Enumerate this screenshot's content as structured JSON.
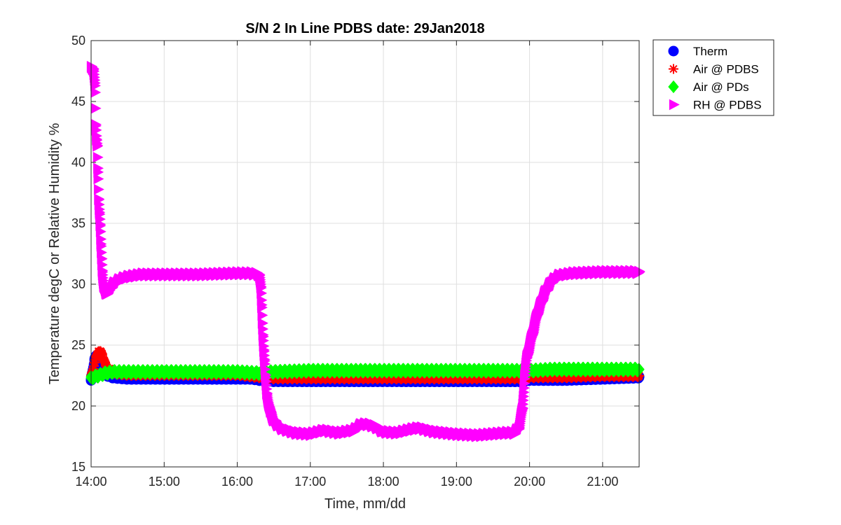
{
  "chart_data": {
    "type": "scatter",
    "title": "S/N 2 In Line PDBS date: 29Jan2018",
    "xlabel": "Time, mm/dd",
    "ylabel": "Temperature degC or Relative Humidity %",
    "xlim": [
      14.0,
      21.5
    ],
    "ylim": [
      15,
      50
    ],
    "xticks": [
      14,
      15,
      16,
      17,
      18,
      19,
      20,
      21
    ],
    "xtick_labels": [
      "14:00",
      "15:00",
      "16:00",
      "17:00",
      "18:00",
      "19:00",
      "20:00",
      "21:00"
    ],
    "yticks": [
      15,
      20,
      25,
      30,
      35,
      40,
      45,
      50
    ],
    "ytick_labels": [
      "15",
      "20",
      "25",
      "30",
      "35",
      "40",
      "45",
      "50"
    ],
    "grid": true,
    "legend_position": "outside-top-right",
    "series": [
      {
        "name": "Therm",
        "marker": "circle",
        "color": "#0000ff",
        "points": [
          [
            14.0,
            22.1
          ],
          [
            14.05,
            23.9
          ],
          [
            14.1,
            24.2
          ],
          [
            14.15,
            23.2
          ],
          [
            14.2,
            22.6
          ],
          [
            14.3,
            22.4
          ],
          [
            14.5,
            22.3
          ],
          [
            15.0,
            22.3
          ],
          [
            15.5,
            22.3
          ],
          [
            16.0,
            22.3
          ],
          [
            16.2,
            22.3
          ],
          [
            16.3,
            22.2
          ],
          [
            16.5,
            22.1
          ],
          [
            17.0,
            22.1
          ],
          [
            18.0,
            22.1
          ],
          [
            19.0,
            22.1
          ],
          [
            19.9,
            22.1
          ],
          [
            20.0,
            22.2
          ],
          [
            20.5,
            22.2
          ],
          [
            21.0,
            22.3
          ],
          [
            21.5,
            22.4
          ]
        ]
      },
      {
        "name": "Air @ PDBS",
        "marker": "asterisk",
        "color": "#ff0000",
        "points": [
          [
            14.0,
            22.4
          ],
          [
            14.05,
            23.6
          ],
          [
            14.1,
            24.5
          ],
          [
            14.15,
            24.3
          ],
          [
            14.2,
            23.3
          ],
          [
            14.3,
            22.7
          ],
          [
            14.5,
            22.6
          ],
          [
            15.0,
            22.6
          ],
          [
            15.5,
            22.6
          ],
          [
            16.0,
            22.6
          ],
          [
            16.3,
            22.4
          ],
          [
            16.5,
            22.3
          ],
          [
            17.0,
            22.3
          ],
          [
            18.0,
            22.3
          ],
          [
            19.0,
            22.3
          ],
          [
            19.9,
            22.3
          ],
          [
            20.0,
            22.4
          ],
          [
            20.5,
            22.4
          ],
          [
            21.0,
            22.5
          ],
          [
            21.5,
            22.5
          ]
        ]
      },
      {
        "name": "Air @ PDs",
        "marker": "diamond",
        "color": "#00ff00",
        "points": [
          [
            14.0,
            22.3
          ],
          [
            14.1,
            22.5
          ],
          [
            14.2,
            22.7
          ],
          [
            14.3,
            22.8
          ],
          [
            14.5,
            22.8
          ],
          [
            15.0,
            22.8
          ],
          [
            15.5,
            22.8
          ],
          [
            16.0,
            22.8
          ],
          [
            16.3,
            22.7
          ],
          [
            16.5,
            22.8
          ],
          [
            17.0,
            22.9
          ],
          [
            17.5,
            22.9
          ],
          [
            18.0,
            22.9
          ],
          [
            18.5,
            22.9
          ],
          [
            19.0,
            22.9
          ],
          [
            19.5,
            22.9
          ],
          [
            20.0,
            22.9
          ],
          [
            20.3,
            23.0
          ],
          [
            20.5,
            23.0
          ],
          [
            21.0,
            23.0
          ],
          [
            21.5,
            23.0
          ]
        ]
      },
      {
        "name": "RH @ PDBS",
        "marker": "triangle-right",
        "color": "#ff00ff",
        "points": [
          [
            14.0,
            47.8
          ],
          [
            14.03,
            47.7
          ],
          [
            14.05,
            46.3
          ],
          [
            14.06,
            43.0
          ],
          [
            14.07,
            41.9
          ],
          [
            14.08,
            41.4
          ],
          [
            14.09,
            39.2
          ],
          [
            14.1,
            37.0
          ],
          [
            14.11,
            35.9
          ],
          [
            14.12,
            34.8
          ],
          [
            14.13,
            33.3
          ],
          [
            14.14,
            32.1
          ],
          [
            14.15,
            31.0
          ],
          [
            14.17,
            29.8
          ],
          [
            14.2,
            29.2
          ],
          [
            14.25,
            29.5
          ],
          [
            14.3,
            30.0
          ],
          [
            14.4,
            30.4
          ],
          [
            14.5,
            30.6
          ],
          [
            14.7,
            30.8
          ],
          [
            15.0,
            30.8
          ],
          [
            15.5,
            30.8
          ],
          [
            16.0,
            30.9
          ],
          [
            16.2,
            30.9
          ],
          [
            16.3,
            30.8
          ],
          [
            16.32,
            29.7
          ],
          [
            16.33,
            28.3
          ],
          [
            16.34,
            26.8
          ],
          [
            16.35,
            25.7
          ],
          [
            16.36,
            24.6
          ],
          [
            16.37,
            23.7
          ],
          [
            16.38,
            22.5
          ],
          [
            16.4,
            21.0
          ],
          [
            16.45,
            19.5
          ],
          [
            16.5,
            18.8
          ],
          [
            16.6,
            18.2
          ],
          [
            16.8,
            17.8
          ],
          [
            17.0,
            17.7
          ],
          [
            17.2,
            18.0
          ],
          [
            17.4,
            17.8
          ],
          [
            17.6,
            18.0
          ],
          [
            17.7,
            18.5
          ],
          [
            17.8,
            18.5
          ],
          [
            17.9,
            18.3
          ],
          [
            18.0,
            17.9
          ],
          [
            18.2,
            17.8
          ],
          [
            18.4,
            18.1
          ],
          [
            18.5,
            18.2
          ],
          [
            18.7,
            17.9
          ],
          [
            19.0,
            17.7
          ],
          [
            19.3,
            17.6
          ],
          [
            19.5,
            17.7
          ],
          [
            19.7,
            17.8
          ],
          [
            19.8,
            17.8
          ],
          [
            19.85,
            18.2
          ],
          [
            19.9,
            19.8
          ],
          [
            19.93,
            22.5
          ],
          [
            19.96,
            24.0
          ],
          [
            20.0,
            25.0
          ],
          [
            20.1,
            27.5
          ],
          [
            20.2,
            29.2
          ],
          [
            20.3,
            30.2
          ],
          [
            20.4,
            30.7
          ],
          [
            20.6,
            30.9
          ],
          [
            21.0,
            31.0
          ],
          [
            21.3,
            31.0
          ],
          [
            21.5,
            31.0
          ]
        ]
      }
    ]
  }
}
